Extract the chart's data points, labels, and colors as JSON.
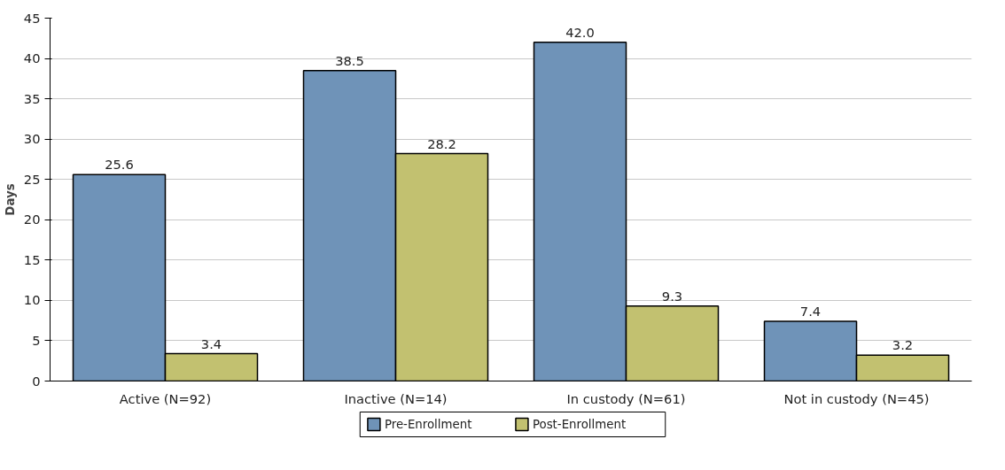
{
  "chart_data": {
    "type": "bar",
    "ylabel": "Days",
    "categories": [
      "Active (N=92)",
      "Inactive (N=14)",
      "In custody (N=61)",
      "Not in custody (N=45)"
    ],
    "series": [
      {
        "name": "Pre-Enrollment",
        "color": "#6f93b8",
        "values": [
          25.6,
          38.5,
          42.0,
          7.4
        ]
      },
      {
        "name": "Post-Enrollment",
        "color": "#c2c170",
        "values": [
          3.4,
          28.2,
          9.3,
          3.2
        ]
      }
    ],
    "value_labels": [
      [
        "25.6",
        "38.5",
        "42.0",
        "7.4"
      ],
      [
        "3.4",
        "28.2",
        "9.3",
        "3.2"
      ]
    ],
    "ylim": [
      0,
      45
    ],
    "yticks": [
      0,
      5,
      10,
      15,
      20,
      25,
      30,
      35,
      40,
      45
    ],
    "grid": "y",
    "legend": "bottom"
  }
}
